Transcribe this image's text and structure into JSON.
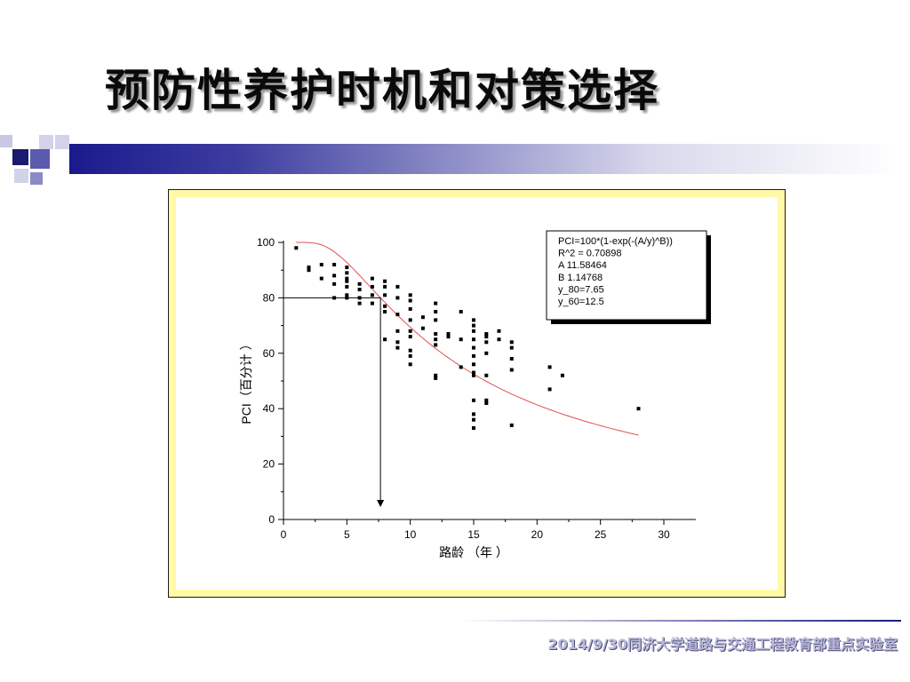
{
  "slide": {
    "title": "预防性养护时机和对策选择",
    "footer": "2014/9/30同济大学道路与交通工程教育部重点实验室"
  },
  "colors": {
    "band_dark": "#1a1a8c",
    "frame_fill": "#fff9a8",
    "curve": "#e05050",
    "points": "#000000"
  },
  "chart_data": {
    "type": "scatter",
    "xlabel": "路龄 （年 ）",
    "ylabel": "PCI（百分计 ）",
    "xlim": [
      0,
      30
    ],
    "ylim": [
      0,
      100
    ],
    "xticks": [
      "0",
      "5",
      "10",
      "15",
      "20",
      "25",
      "30"
    ],
    "yticks": [
      "0",
      "20",
      "40",
      "60",
      "80",
      "100"
    ],
    "grid": false,
    "annotation": {
      "lines": [
        "PCI=100*(1-exp(-(A/y)^B))",
        "R^2     = 0.70898",
        "A          11.58464",
        "B          1.14768",
        "y_80=7.65",
        "y_60=12.5"
      ],
      "position": "top-right"
    },
    "fit": {
      "formula": "PCI=100*(1-exp(-(A/y)^B))",
      "A": 11.58464,
      "B": 1.14768,
      "x_range": [
        1,
        28
      ]
    },
    "marker": {
      "x": 7.65,
      "y": 80
    },
    "points": [
      [
        1,
        98
      ],
      [
        2,
        91
      ],
      [
        2,
        90
      ],
      [
        3,
        92
      ],
      [
        3,
        87
      ],
      [
        4,
        92
      ],
      [
        4,
        88
      ],
      [
        4,
        85
      ],
      [
        4,
        80
      ],
      [
        5,
        91
      ],
      [
        5,
        89
      ],
      [
        5,
        87
      ],
      [
        5,
        86
      ],
      [
        5,
        84
      ],
      [
        5,
        81
      ],
      [
        5,
        80
      ],
      [
        6,
        85
      ],
      [
        6,
        83
      ],
      [
        6,
        80
      ],
      [
        6,
        78
      ],
      [
        7,
        87
      ],
      [
        7,
        84
      ],
      [
        7,
        81
      ],
      [
        7,
        78
      ],
      [
        8,
        86
      ],
      [
        8,
        84
      ],
      [
        8,
        81
      ],
      [
        8,
        77
      ],
      [
        8,
        75
      ],
      [
        8,
        65
      ],
      [
        9,
        84
      ],
      [
        9,
        80
      ],
      [
        9,
        74
      ],
      [
        9,
        68
      ],
      [
        9,
        64
      ],
      [
        9,
        62
      ],
      [
        10,
        81
      ],
      [
        10,
        79
      ],
      [
        10,
        76
      ],
      [
        10,
        72
      ],
      [
        10,
        68
      ],
      [
        10,
        66
      ],
      [
        10,
        61
      ],
      [
        10,
        59
      ],
      [
        10,
        56
      ],
      [
        11,
        73
      ],
      [
        11,
        69
      ],
      [
        12,
        78
      ],
      [
        12,
        75
      ],
      [
        12,
        72
      ],
      [
        12,
        67
      ],
      [
        12,
        65
      ],
      [
        12,
        63
      ],
      [
        12,
        52
      ],
      [
        12,
        51
      ],
      [
        13,
        67
      ],
      [
        13,
        66
      ],
      [
        14,
        75
      ],
      [
        14,
        65
      ],
      [
        14,
        55
      ],
      [
        15,
        72
      ],
      [
        15,
        70
      ],
      [
        15,
        68
      ],
      [
        15,
        65
      ],
      [
        15,
        62
      ],
      [
        15,
        59
      ],
      [
        15,
        56
      ],
      [
        15,
        53
      ],
      [
        15,
        52
      ],
      [
        15,
        43
      ],
      [
        15,
        38
      ],
      [
        15,
        36
      ],
      [
        15,
        33
      ],
      [
        16,
        67
      ],
      [
        16,
        66
      ],
      [
        16,
        64
      ],
      [
        16,
        60
      ],
      [
        16,
        52
      ],
      [
        16,
        43
      ],
      [
        16,
        42
      ],
      [
        17,
        68
      ],
      [
        17,
        65
      ],
      [
        18,
        64
      ],
      [
        18,
        62
      ],
      [
        18,
        58
      ],
      [
        18,
        54
      ],
      [
        18,
        34
      ],
      [
        21,
        55
      ],
      [
        21,
        47
      ],
      [
        22,
        52
      ],
      [
        28,
        40
      ]
    ]
  }
}
